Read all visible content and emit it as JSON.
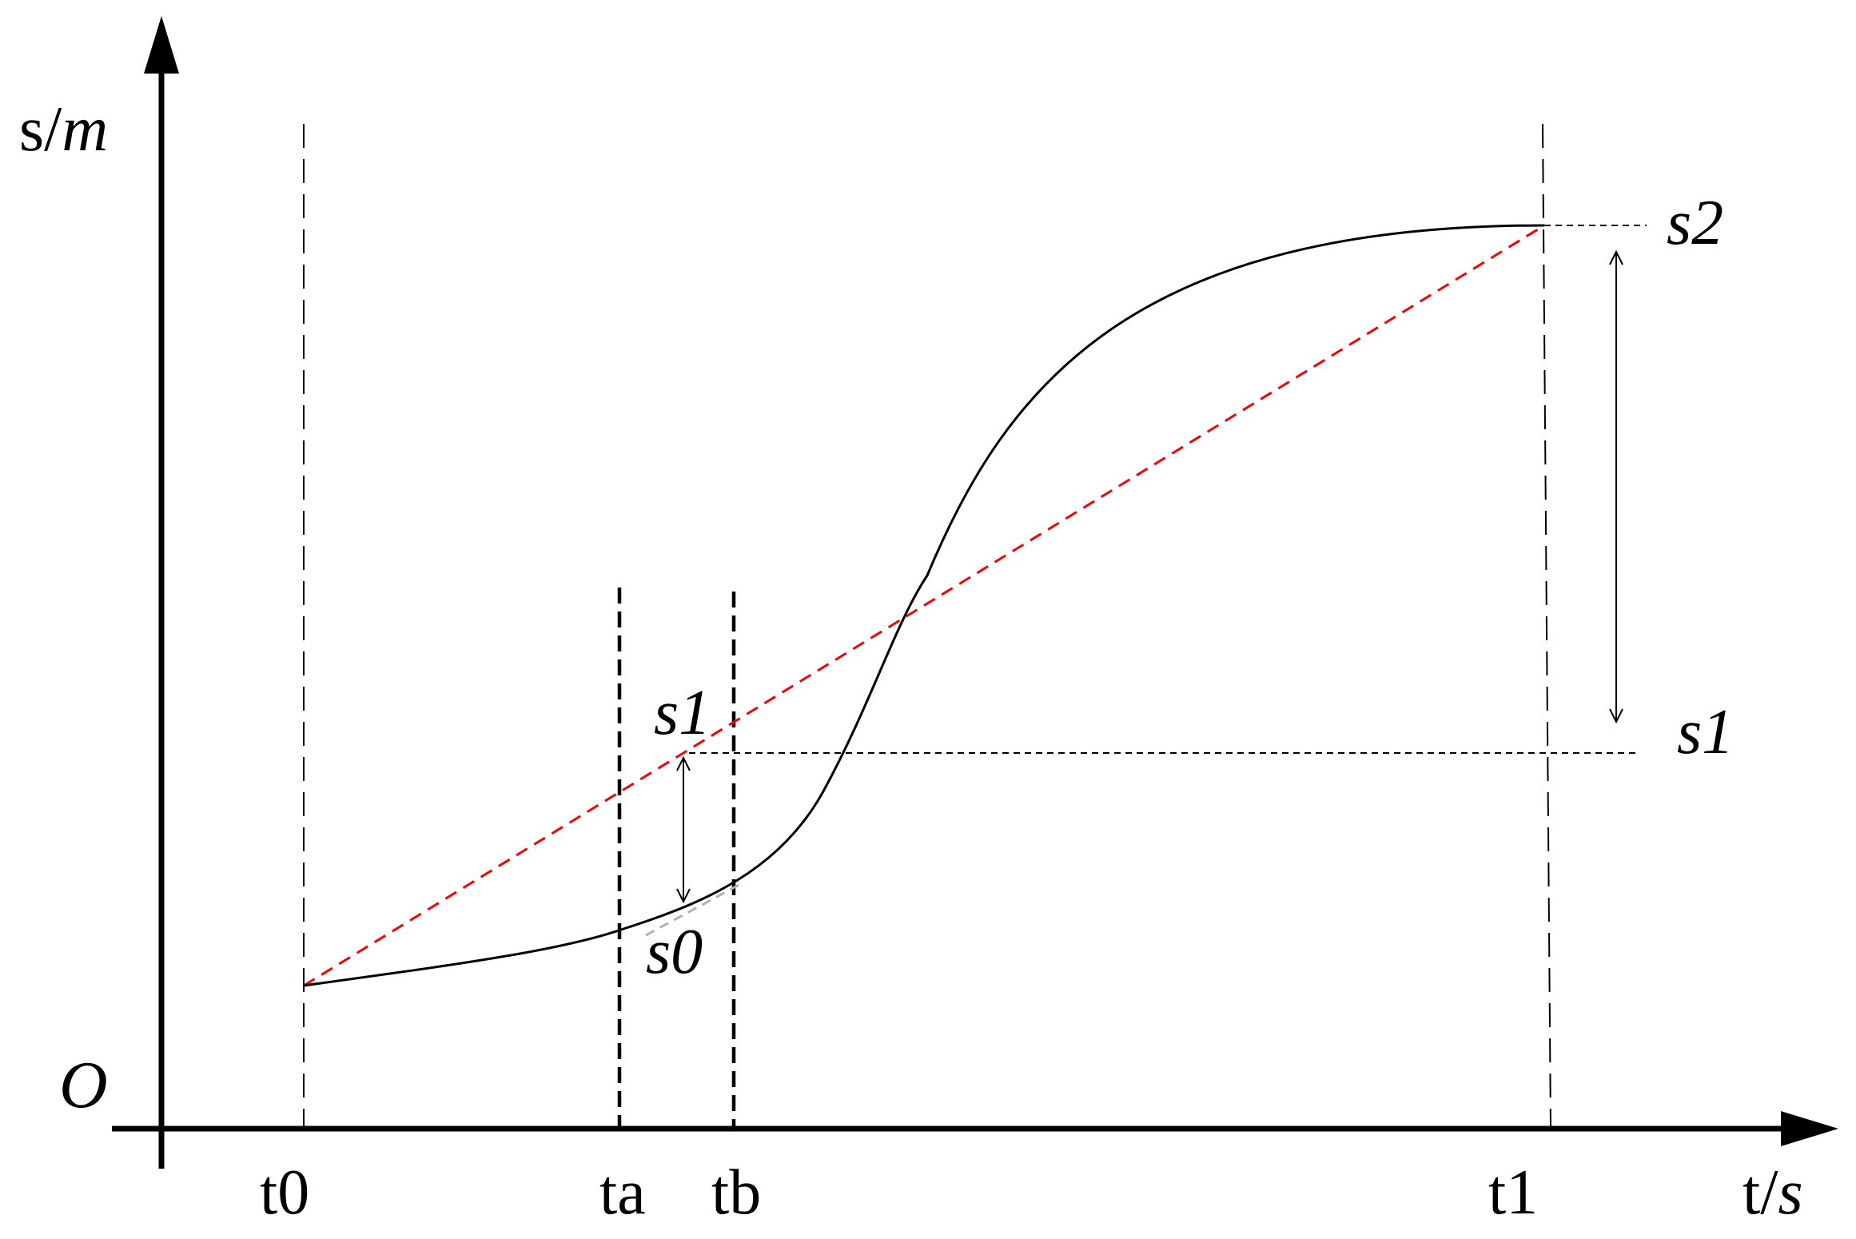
{
  "diagram": {
    "axes": {
      "y_label_main": "s/",
      "y_label_unit": "m",
      "x_label_main": "t/",
      "x_label_unit": "s",
      "origin": "O"
    },
    "time_labels": [
      "t0",
      "ta",
      "tb",
      "t1"
    ],
    "value_labels": {
      "s2": "s2",
      "s1_right": "s1",
      "s1_mid": "s1",
      "s0": "s0"
    },
    "colors": {
      "curve": "#000000",
      "secant": "#ff0000",
      "tangent": "#b0b0b0",
      "guides": "#000000"
    }
  }
}
